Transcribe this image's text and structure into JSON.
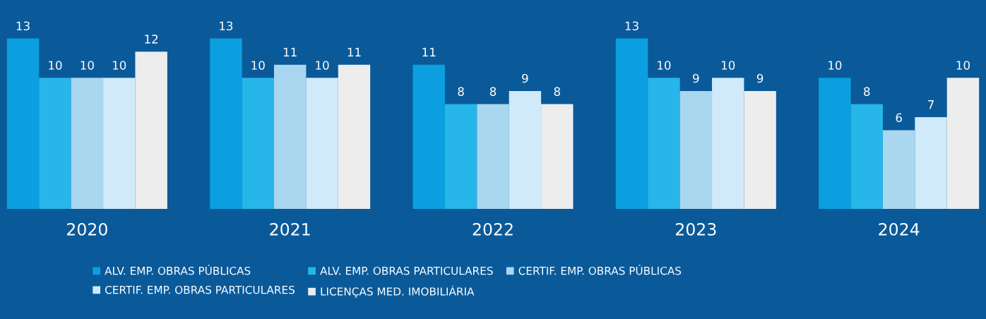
{
  "chart_data": {
    "type": "bar",
    "categories": [
      "2020",
      "2021",
      "2022",
      "2023",
      "2024"
    ],
    "series": [
      {
        "name": "ALV. EMP. OBRAS PÚBLICAS",
        "color": "#0b9fe0",
        "values": [
          13,
          13,
          11,
          13,
          10
        ]
      },
      {
        "name": "ALV. EMP. OBRAS PARTICULARES",
        "color": "#27b6ea",
        "values": [
          10,
          10,
          8,
          10,
          8
        ]
      },
      {
        "name": "CERTIF. EMP. OBRAS PÚBLICAS",
        "color": "#a9d7ef",
        "values": [
          10,
          11,
          8,
          9,
          6
        ]
      },
      {
        "name": "CERTIF. EMP. OBRAS PARTICULARES",
        "color": "#d0eafa",
        "values": [
          10,
          10,
          9,
          10,
          7
        ]
      },
      {
        "name": "LICENÇAS MED. IMOBILIÁRIA",
        "color": "#ededed",
        "values": [
          12,
          11,
          8,
          9,
          10
        ]
      }
    ],
    "data_labels": true,
    "tick_labels": "x",
    "grid": false,
    "legend": "bottom"
  }
}
